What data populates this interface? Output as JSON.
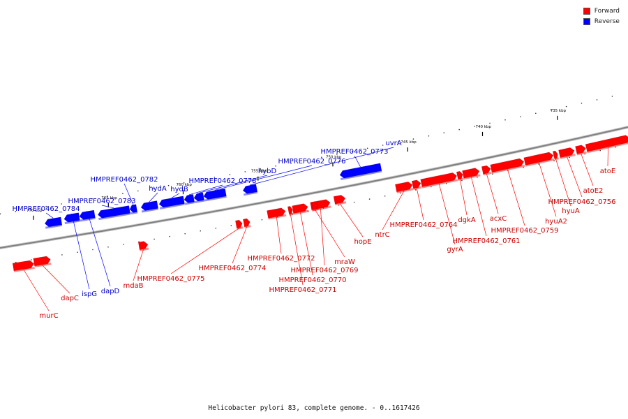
{
  "caption": "Helicobacter pylori 83, complete genome. - 0..1617426",
  "legend": [
    {
      "label": "Forward",
      "color": "#ff0000"
    },
    {
      "label": "Reverse",
      "color": "#0000ff"
    }
  ],
  "colors": {
    "forward": "#ff0000",
    "reverse": "#0000ff",
    "backbone": "#808080"
  },
  "ticks": [
    {
      "kbp": 735,
      "label": "735 kbp"
    },
    {
      "kbp": 740,
      "label": "740 kbp"
    },
    {
      "kbp": 745,
      "label": "745 kbp"
    },
    {
      "kbp": 750,
      "label": "750 kbp"
    },
    {
      "kbp": 755,
      "label": "755 kbp"
    },
    {
      "kbp": 760,
      "label": "760 kbp"
    },
    {
      "kbp": 765,
      "label": "765 kbp"
    },
    {
      "kbp": 770,
      "label": "770 kbp"
    }
  ],
  "genes": [
    {
      "name": "murC",
      "strand": "forward"
    },
    {
      "name": "dapC",
      "strand": "forward"
    },
    {
      "name": "ispG",
      "strand": "reverse"
    },
    {
      "name": "dapD",
      "strand": "reverse"
    },
    {
      "name": "HMPREF0462_0784",
      "strand": "reverse"
    },
    {
      "name": "HMPREF0462_0783",
      "strand": "reverse"
    },
    {
      "name": "HMPREF0462_0782",
      "strand": "reverse"
    },
    {
      "name": "mdaB",
      "strand": "forward"
    },
    {
      "name": "hydA",
      "strand": "reverse"
    },
    {
      "name": "hydB",
      "strand": "reverse"
    },
    {
      "name": "HMPREF0462_0778",
      "strand": "reverse"
    },
    {
      "name": "hybD",
      "strand": "reverse"
    },
    {
      "name": "HMPREF0462_0776",
      "strand": "reverse"
    },
    {
      "name": "HMPREF0462_0775",
      "strand": "forward"
    },
    {
      "name": "HMPREF0462_0774",
      "strand": "forward"
    },
    {
      "name": "HMPREF0462_0773",
      "strand": "reverse"
    },
    {
      "name": "HMPREF0462_0772",
      "strand": "forward"
    },
    {
      "name": "HMPREF0462_0771",
      "strand": "forward"
    },
    {
      "name": "HMPREF0462_0770",
      "strand": "forward"
    },
    {
      "name": "HMPREF0462_0769",
      "strand": "forward"
    },
    {
      "name": "mraW",
      "strand": "forward"
    },
    {
      "name": "hopE",
      "strand": "forward"
    },
    {
      "name": "uvrA",
      "strand": "reverse"
    },
    {
      "name": "ntrC",
      "strand": "forward"
    },
    {
      "name": "HMPREF0462_0764",
      "strand": "forward"
    },
    {
      "name": "gyrA",
      "strand": "forward"
    },
    {
      "name": "dgkA",
      "strand": "forward"
    },
    {
      "name": "HMPREF0462_0761",
      "strand": "forward"
    },
    {
      "name": "acxC",
      "strand": "forward"
    },
    {
      "name": "HMPREF0462_0759",
      "strand": "forward"
    },
    {
      "name": "hyuA2",
      "strand": "forward"
    },
    {
      "name": "hyuA",
      "strand": "forward"
    },
    {
      "name": "HMPREF0462_0756",
      "strand": "forward"
    },
    {
      "name": "atoE2",
      "strand": "forward"
    },
    {
      "name": "atoE",
      "strand": "forward"
    }
  ]
}
